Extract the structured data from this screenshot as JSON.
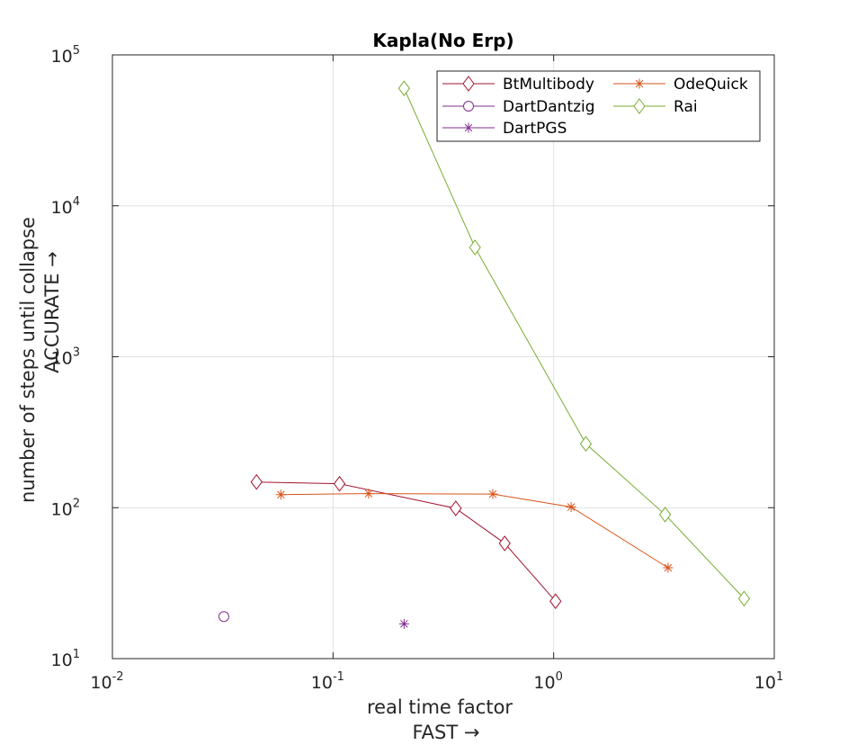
{
  "chart_data": {
    "type": "line",
    "title": "Kapla(No Erp)",
    "xlabel": [
      "real time factor",
      "FAST →"
    ],
    "ylabel": [
      "number of steps until collapse",
      "ACCURATE →"
    ],
    "xscale": "log",
    "yscale": "log",
    "xlim": [
      0.01,
      10
    ],
    "ylim": [
      10,
      100000
    ],
    "grid": true,
    "legend_position": "top-right",
    "x_ticks": [
      {
        "base": "10",
        "exp": "-2",
        "value": 0.01
      },
      {
        "base": "10",
        "exp": "-1",
        "value": 0.1
      },
      {
        "base": "10",
        "exp": "0",
        "value": 1
      },
      {
        "base": "10",
        "exp": "1",
        "value": 10
      }
    ],
    "y_ticks": [
      {
        "base": "10",
        "exp": "1",
        "value": 10
      },
      {
        "base": "10",
        "exp": "2",
        "value": 100
      },
      {
        "base": "10",
        "exp": "3",
        "value": 1000
      },
      {
        "base": "10",
        "exp": "4",
        "value": 10000
      },
      {
        "base": "10",
        "exp": "5",
        "value": 100000
      }
    ],
    "series": [
      {
        "name": "BtMultibody",
        "marker": "diamond",
        "color": "#a2142f",
        "x": [
          0.045,
          0.107,
          0.36,
          0.6,
          1.02
        ],
        "y": [
          148,
          144,
          99,
          58,
          24
        ]
      },
      {
        "name": "DartDantzig",
        "marker": "circle",
        "color": "#7e2f8e",
        "x": [
          0.032
        ],
        "y": [
          19
        ]
      },
      {
        "name": "DartPGS",
        "marker": "asterisk",
        "color": "#7e2f8e",
        "x": [
          0.21
        ],
        "y": [
          17
        ]
      },
      {
        "name": "OdeQuick",
        "marker": "asterisk",
        "color": "#d95319",
        "x": [
          0.058,
          0.145,
          0.53,
          1.2,
          3.3
        ],
        "y": [
          122,
          124,
          123,
          101,
          40
        ]
      },
      {
        "name": "Rai",
        "marker": "diamond",
        "color": "#77ac30",
        "x": [
          0.21,
          0.44,
          1.4,
          3.2,
          7.3
        ],
        "y": [
          60000,
          5300,
          265,
          90,
          25
        ]
      }
    ]
  }
}
